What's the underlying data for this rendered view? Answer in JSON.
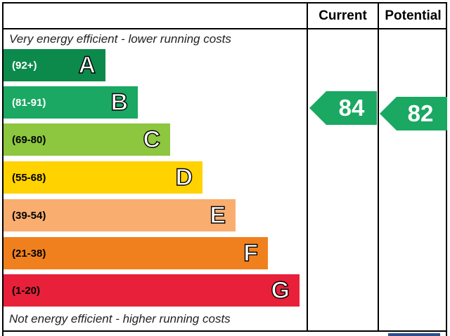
{
  "chart_data": {
    "type": "bar",
    "headers": {
      "current": "Current",
      "potential": "Potential"
    },
    "top_caption": "Very energy efficient - lower running costs",
    "bottom_caption": "Not energy efficient - higher running costs",
    "bands": [
      {
        "range": "(92+)",
        "letter": "A",
        "color": "#0c8a4b",
        "text_color": "#ffffff"
      },
      {
        "range": "(81-91)",
        "letter": "B",
        "color": "#1aa862",
        "text_color": "#ffffff"
      },
      {
        "range": "(69-80)",
        "letter": "C",
        "color": "#8dc63f",
        "text_color": "#000000"
      },
      {
        "range": "(55-68)",
        "letter": "D",
        "color": "#ffd200",
        "text_color": "#000000"
      },
      {
        "range": "(39-54)",
        "letter": "E",
        "color": "#f9ad6f",
        "text_color": "#000000"
      },
      {
        "range": "(21-38)",
        "letter": "F",
        "color": "#f0801e",
        "text_color": "#000000"
      },
      {
        "range": "(1-20)",
        "letter": "G",
        "color": "#e8203a",
        "text_color": "#000000"
      }
    ],
    "current": {
      "value": 84,
      "band": "B",
      "color": "#1aa862"
    },
    "potential": {
      "value": 82,
      "band": "B",
      "color": "#1aa862"
    }
  }
}
